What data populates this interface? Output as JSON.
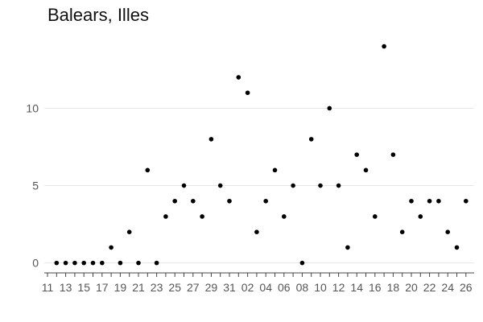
{
  "chart_data": {
    "type": "scatter",
    "title": "Balears, Illes",
    "xlabel": "",
    "ylabel": "",
    "ylim": [
      -0.8,
      14.5
    ],
    "yticks": [
      0,
      5,
      10
    ],
    "grid": "horizontal",
    "x": [
      "11",
      "12",
      "13",
      "14",
      "15",
      "16",
      "17",
      "18",
      "19",
      "20",
      "21",
      "22",
      "23",
      "24",
      "25",
      "26",
      "27",
      "28",
      "29",
      "30",
      "31",
      "01",
      "02",
      "03",
      "04",
      "05",
      "06",
      "07",
      "08",
      "09",
      "10",
      "11",
      "12",
      "13",
      "14",
      "15",
      "16",
      "17",
      "18",
      "19",
      "20",
      "21",
      "22",
      "23",
      "24",
      "25",
      "26"
    ],
    "xtick_labels": [
      "11",
      "13",
      "15",
      "17",
      "19",
      "21",
      "23",
      "25",
      "27",
      "29",
      "31",
      "02",
      "04",
      "06",
      "08",
      "10",
      "12",
      "14",
      "16",
      "18",
      "20",
      "22",
      "24",
      "26"
    ],
    "series": [
      {
        "values": [
          null,
          0,
          0,
          0,
          0,
          0,
          0,
          1,
          0,
          2,
          0,
          6,
          0,
          3,
          4,
          5,
          4,
          3,
          8,
          5,
          4,
          12,
          11,
          2,
          4,
          6,
          3,
          5,
          0,
          8,
          5,
          10,
          5,
          1,
          7,
          6,
          3,
          14,
          7,
          2,
          4,
          3,
          4,
          4,
          2,
          1,
          4
        ]
      }
    ],
    "colors": {
      "point": "#000000",
      "grid": "#e6e6e6",
      "text": "#555555"
    }
  }
}
